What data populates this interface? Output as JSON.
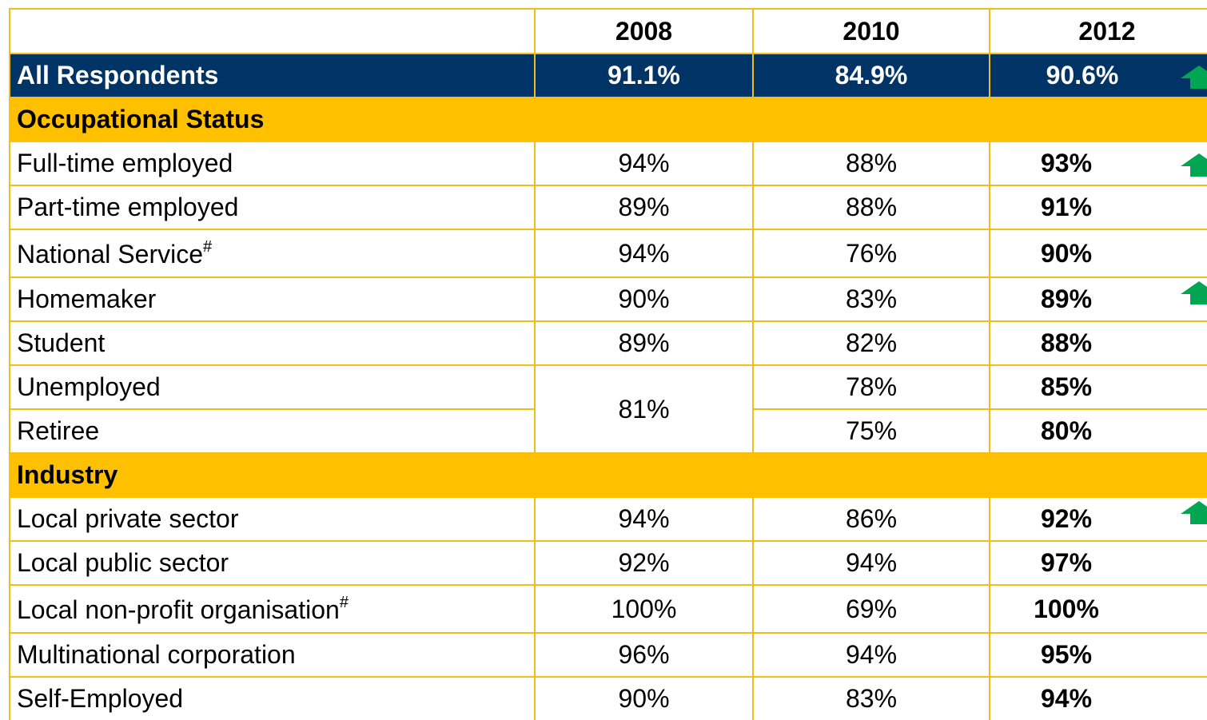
{
  "header": {
    "columns": [
      "2008",
      "2010",
      "2012"
    ]
  },
  "all_respondents": {
    "label": "All Respondents",
    "values": [
      "91.1%",
      "84.9%",
      "90.6%"
    ]
  },
  "sections": [
    {
      "title": "Occupational Status",
      "rows": [
        {
          "label": "Full-time employed",
          "values": [
            "94%",
            "88%",
            "93%"
          ]
        },
        {
          "label": "Part-time employed",
          "values": [
            "89%",
            "88%",
            "91%"
          ]
        },
        {
          "label": "National Service",
          "note": "#",
          "values": [
            "94%",
            "76%",
            "90%"
          ]
        },
        {
          "label": "Homemaker",
          "values": [
            "90%",
            "83%",
            "89%"
          ]
        },
        {
          "label": "Student",
          "values": [
            "89%",
            "82%",
            "88%"
          ]
        },
        {
          "label": "Unemployed",
          "values": [
            "81%",
            "78%",
            "85%"
          ]
        },
        {
          "label": "Retiree",
          "values": [
            "75%",
            "80%"
          ]
        }
      ]
    },
    {
      "title": "Industry",
      "rows": [
        {
          "label": "Local private sector",
          "values": [
            "94%",
            "86%",
            "92%"
          ]
        },
        {
          "label": "Local public sector",
          "values": [
            "92%",
            "94%",
            "97%"
          ]
        },
        {
          "label": "Local non-profit organisation",
          "note": "#",
          "values": [
            "100%",
            "69%",
            "100%"
          ]
        },
        {
          "label": "Multinational corporation",
          "values": [
            "96%",
            "94%",
            "95%"
          ]
        },
        {
          "label": "Self-Employed",
          "values": [
            "90%",
            "83%",
            "94%"
          ]
        }
      ]
    }
  ]
}
